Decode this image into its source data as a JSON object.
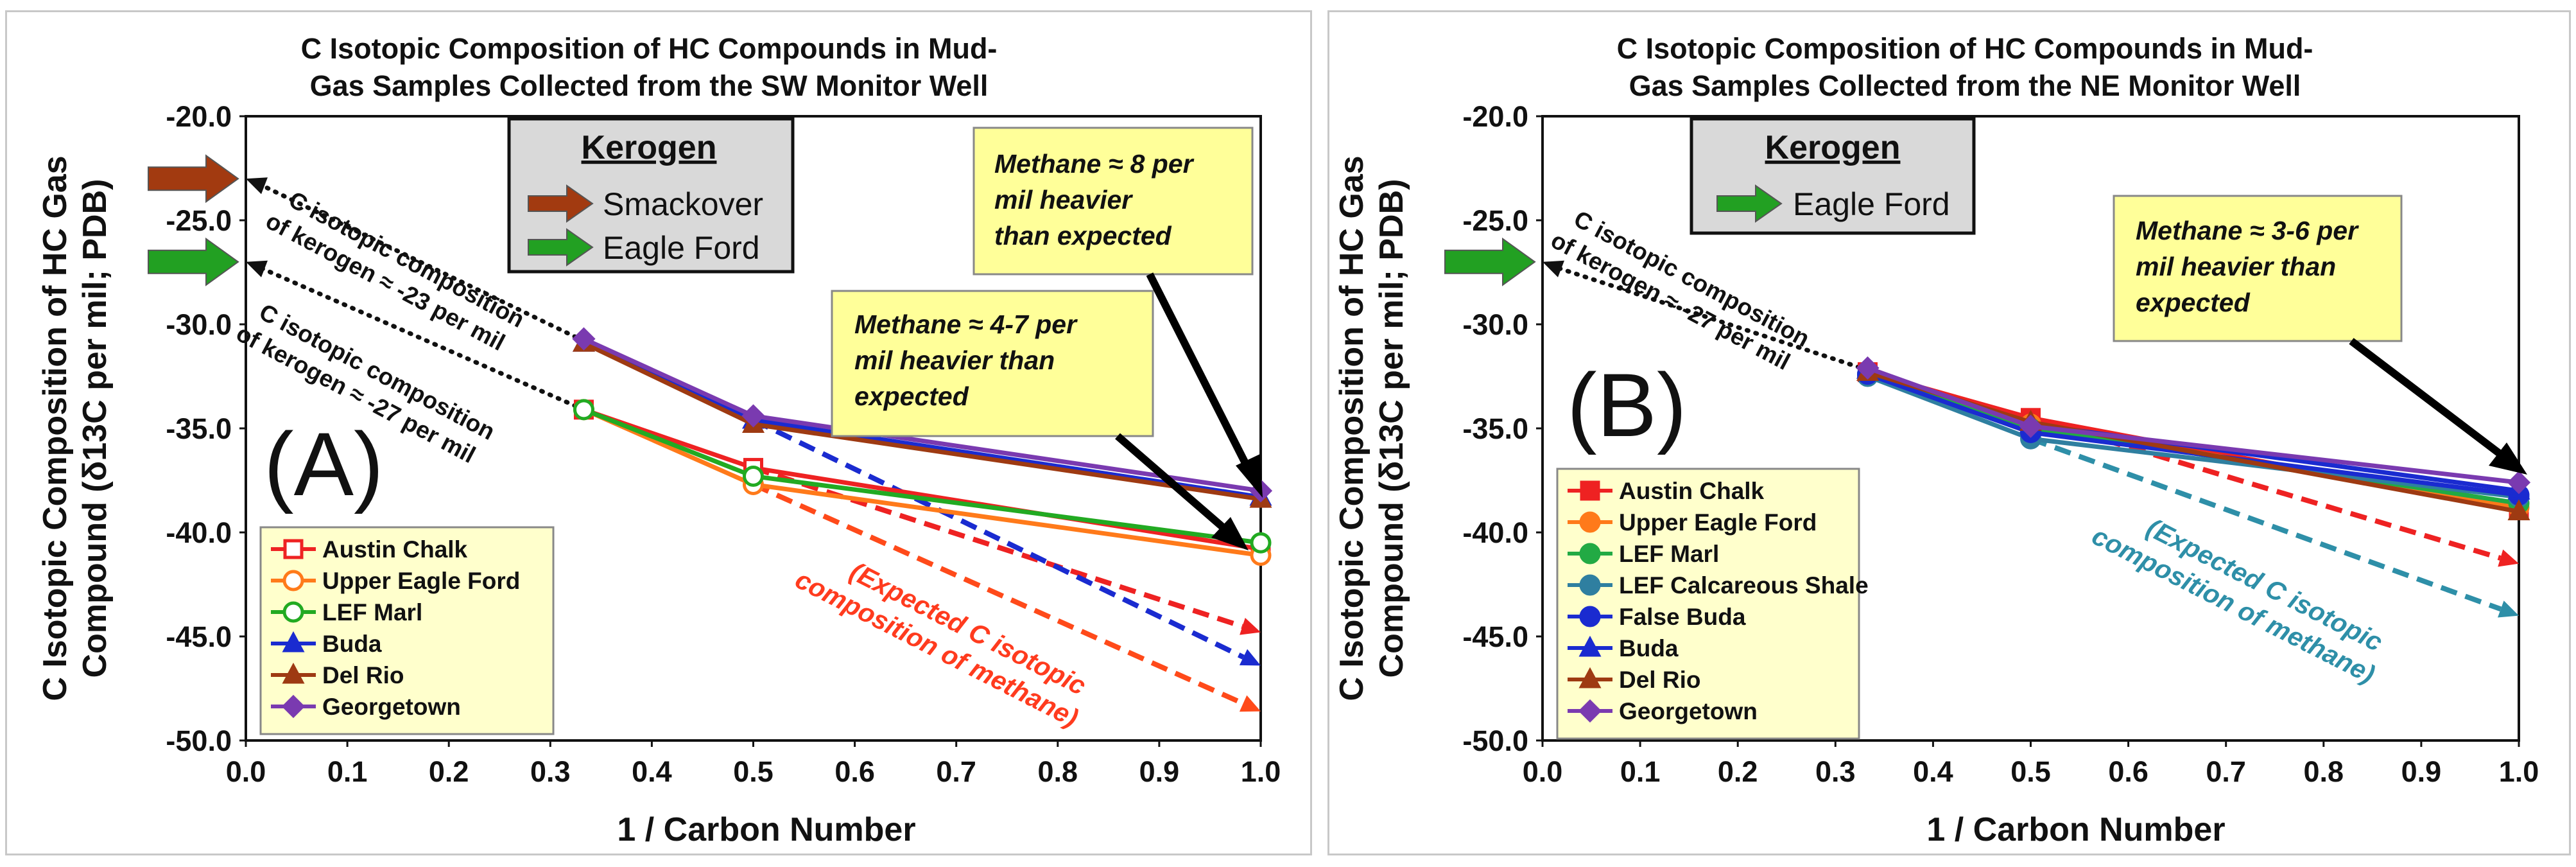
{
  "panels": {
    "a": {
      "title_line1": "C Isotopic Composition of HC Compounds in Mud-",
      "title_line2": "Gas Samples Collected from the SW Monitor Well",
      "letter": "(A)",
      "kerogen": {
        "heading": "Kerogen",
        "items": [
          "Smackover",
          "Eagle Ford"
        ]
      },
      "annotations": {
        "kerogen_line1_a": "C isotopic composition",
        "kerogen_line1_b": "of kerogen ≈ -23 per mil",
        "kerogen_line2_a": "C isotopic composition",
        "kerogen_line2_b": "of kerogen ≈ -27 per mil",
        "note1_l1": "Methane ≈ 8 per",
        "note1_l2": "mil heavier",
        "note1_l3": "than expected",
        "note2_l1": "Methane ≈ 4-7 per",
        "note2_l2": "mil heavier than",
        "note2_l3": "expected",
        "expected_l1": "(Expected C isotopic",
        "expected_l2": "composition of methane)"
      }
    },
    "b": {
      "title_line1": "C Isotopic Composition of HC Compounds in Mud-",
      "title_line2": "Gas Samples Collected from the NE Monitor Well",
      "letter": "(B)",
      "kerogen": {
        "heading": "Kerogen",
        "items": [
          "Eagle Ford"
        ]
      },
      "annotations": {
        "kerogen_line_a": "C isotopic composition",
        "kerogen_line_b": "of kerogen ≈ -27 per mil",
        "note_l1": "Methane ≈ 3-6 per",
        "note_l2": "mil heavier than",
        "note_l3": "expected",
        "expected_l1": "(Expected C isotopic",
        "expected_l2": "composition of methane)"
      }
    }
  },
  "chart_data": [
    {
      "type": "line",
      "title": "C Isotopic Composition of HC Compounds in Mud-Gas Samples Collected from the SW Monitor Well",
      "xlabel": "1 / Carbon Number",
      "ylabel_line1": "C Isotopic Composition of HC Gas",
      "ylabel_line2": "Compound (δ13C per mil; PDB)",
      "xlim": [
        0.0,
        1.0
      ],
      "ylim": [
        -50.0,
        -20.0
      ],
      "x_ticks": [
        "0.0",
        "0.1",
        "0.2",
        "0.3",
        "0.4",
        "0.5",
        "0.6",
        "0.7",
        "0.8",
        "0.9",
        "1.0"
      ],
      "y_ticks": [
        "-20.0",
        "-25.0",
        "-30.0",
        "-35.0",
        "-40.0",
        "-45.0",
        "-50.0"
      ],
      "legend_position": "bottom-left",
      "series": [
        {
          "name": "Austin Chalk",
          "color": "#ee2222",
          "marker": "square-open",
          "x": [
            0.333,
            0.5,
            1.0
          ],
          "y": [
            -34.1,
            -36.9,
            -40.8
          ]
        },
        {
          "name": "Upper Eagle Ford",
          "color": "#ff7a1a",
          "marker": "circle-open",
          "x": [
            0.333,
            0.5,
            1.0
          ],
          "y": [
            -34.1,
            -37.7,
            -41.1
          ]
        },
        {
          "name": "LEF Marl",
          "color": "#22aa22",
          "marker": "circle-open",
          "x": [
            0.333,
            0.5,
            1.0
          ],
          "y": [
            -34.1,
            -37.3,
            -40.5
          ]
        },
        {
          "name": "Buda",
          "color": "#1a2bd0",
          "marker": "triangle",
          "x": [
            0.333,
            0.5,
            1.0
          ],
          "y": [
            -30.9,
            -34.6,
            -38.3
          ]
        },
        {
          "name": "Del Rio",
          "color": "#9e3a12",
          "marker": "triangle",
          "x": [
            0.333,
            0.5,
            1.0
          ],
          "y": [
            -30.9,
            -34.8,
            -38.4
          ]
        },
        {
          "name": "Georgetown",
          "color": "#7a3ab0",
          "marker": "diamond",
          "x": [
            0.333,
            0.5,
            1.0
          ],
          "y": [
            -30.7,
            -34.4,
            -38.0
          ]
        }
      ],
      "expected_lines": [
        {
          "color": "#ee2222",
          "x": [
            0.5,
            1.0
          ],
          "y": [
            -36.9,
            -44.8
          ]
        },
        {
          "color": "#ff4a1a",
          "x": [
            0.5,
            1.0
          ],
          "y": [
            -37.7,
            -48.6
          ]
        },
        {
          "color": "#1a2bd0",
          "x": [
            0.5,
            1.0
          ],
          "y": [
            -34.6,
            -46.4
          ]
        }
      ],
      "kerogen_lines": [
        {
          "x": [
            0.0,
            0.333
          ],
          "y": [
            -23.0,
            -30.8
          ]
        },
        {
          "x": [
            0.0,
            0.333
          ],
          "y": [
            -27.0,
            -34.1
          ]
        }
      ],
      "kerogen_arrows": [
        {
          "color": "#a23a10",
          "y": -23.0
        },
        {
          "color": "#22a022",
          "y": -27.0
        }
      ]
    },
    {
      "type": "line",
      "title": "C Isotopic Composition of HC Compounds in Mud-Gas Samples Collected from the NE Monitor Well",
      "xlabel": "1 / Carbon Number",
      "ylabel_line1": "C Isotopic Composition of HC Gas",
      "ylabel_line2": "Compound (δ13C per mil; PDB)",
      "xlim": [
        0.0,
        1.0
      ],
      "ylim": [
        -50.0,
        -20.0
      ],
      "x_ticks": [
        "0.0",
        "0.1",
        "0.2",
        "0.3",
        "0.4",
        "0.5",
        "0.6",
        "0.7",
        "0.8",
        "0.9",
        "1.0"
      ],
      "y_ticks": [
        "-20.0",
        "-25.0",
        "-30.0",
        "-35.0",
        "-40.0",
        "-45.0",
        "-50.0"
      ],
      "legend_position": "bottom-left",
      "series": [
        {
          "name": "Austin Chalk",
          "color": "#ee2222",
          "marker": "square",
          "x": [
            0.333,
            0.5,
            1.0
          ],
          "y": [
            -32.3,
            -34.5,
            -38.9
          ]
        },
        {
          "name": "Upper Eagle Ford",
          "color": "#ff7a1a",
          "marker": "circle",
          "x": [
            0.333,
            0.5,
            1.0
          ],
          "y": [
            -32.4,
            -34.8,
            -38.8
          ]
        },
        {
          "name": "LEF Marl",
          "color": "#22aa44",
          "marker": "circle",
          "x": [
            0.333,
            0.5,
            1.0
          ],
          "y": [
            -32.4,
            -35.0,
            -38.6
          ]
        },
        {
          "name": "LEF Calcareous Shale",
          "color": "#2f7fa0",
          "marker": "circle",
          "x": [
            0.333,
            0.5,
            1.0
          ],
          "y": [
            -32.5,
            -35.5,
            -38.3
          ]
        },
        {
          "name": "False Buda",
          "color": "#1a2bd0",
          "marker": "circle",
          "x": [
            0.333,
            0.5,
            1.0
          ],
          "y": [
            -32.4,
            -35.2,
            -38.2
          ]
        },
        {
          "name": "Buda",
          "color": "#1a2bd0",
          "marker": "triangle",
          "x": [
            0.333,
            0.5,
            1.0
          ],
          "y": [
            -32.2,
            -34.8,
            -38.0
          ]
        },
        {
          "name": "Del Rio",
          "color": "#9e3a12",
          "marker": "triangle",
          "x": [
            0.333,
            0.5,
            1.0
          ],
          "y": [
            -32.3,
            -34.7,
            -39.0
          ]
        },
        {
          "name": "Georgetown",
          "color": "#7a3ab0",
          "marker": "diamond",
          "x": [
            0.333,
            0.5,
            1.0
          ],
          "y": [
            -32.1,
            -34.9,
            -37.6
          ]
        }
      ],
      "expected_lines": [
        {
          "color": "#ee2222",
          "x": [
            0.5,
            1.0
          ],
          "y": [
            -34.5,
            -41.5
          ]
        },
        {
          "color": "#2e8fa8",
          "x": [
            0.5,
            1.0
          ],
          "y": [
            -35.5,
            -44.0
          ]
        }
      ],
      "kerogen_lines": [
        {
          "x": [
            0.0,
            0.333
          ],
          "y": [
            -27.0,
            -32.2
          ]
        }
      ],
      "kerogen_arrows": [
        {
          "color": "#22a022",
          "y": -27.0
        }
      ]
    }
  ]
}
